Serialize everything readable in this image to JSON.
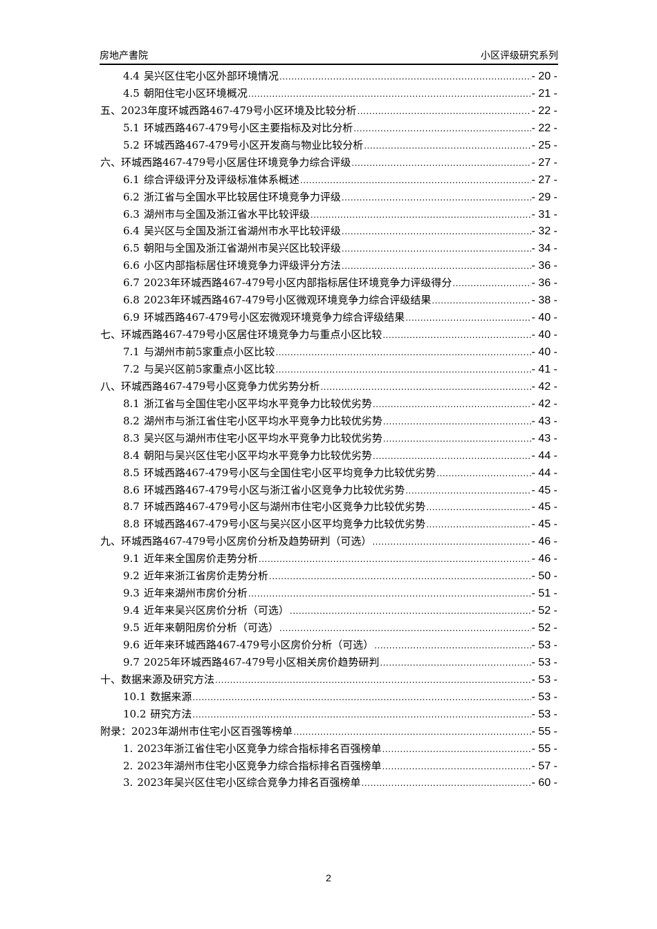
{
  "header": {
    "left": "房地产書院",
    "right": "小区评级研究系列"
  },
  "toc": [
    {
      "level": 2,
      "num": "4.4",
      "title": "吴兴区住宅小区外部环境情况",
      "page": "- 20 -"
    },
    {
      "level": 2,
      "num": "4.5",
      "title": "朝阳住宅小区环境概况",
      "page": "- 21 -"
    },
    {
      "level": 1,
      "num": "",
      "title": "五、2023年度环城西路467-479号小区环境及比较分析",
      "page": "- 22 -"
    },
    {
      "level": 2,
      "num": "5.1",
      "title": "环城西路467-479号小区主要指标及对比分析",
      "page": "- 22 -"
    },
    {
      "level": 2,
      "num": "5.2",
      "title": "环城西路467-479号小区开发商与物业比较分析",
      "page": "- 25 -"
    },
    {
      "level": 1,
      "num": "",
      "title": "六、环城西路467-479号小区居住环境竞争力综合评级",
      "page": "- 27 -"
    },
    {
      "level": 2,
      "num": "6.1",
      "title": "综合评级评分及评级标准体系概述",
      "page": "- 27 -"
    },
    {
      "level": 2,
      "num": "6.2",
      "title": "浙江省与全国水平比较居住环境竞争力评级",
      "page": "- 29 -"
    },
    {
      "level": 2,
      "num": "6.3",
      "title": "湖州市与全国及浙江省水平比较评级",
      "page": "- 31 -"
    },
    {
      "level": 2,
      "num": "6.4",
      "title": "吴兴区与全国及浙江省湖州市水平比较评级",
      "page": "- 32 -"
    },
    {
      "level": 2,
      "num": "6.5",
      "title": "朝阳与全国及浙江省湖州市吴兴区比较评级",
      "page": "- 34 -"
    },
    {
      "level": 2,
      "num": "6.6",
      "title": "小区内部指标居住环境竞争力评级评分方法",
      "page": "- 36 -"
    },
    {
      "level": 2,
      "num": "6.7",
      "title": "2023年环城西路467-479号小区内部指标居住环境竞争力评级得分",
      "page": "- 36 -"
    },
    {
      "level": 2,
      "num": "6.8",
      "title": "2023年环城西路467-479号小区微观环境竞争力综合评级结果",
      "page": "- 38 -"
    },
    {
      "level": 2,
      "num": "6.9",
      "title": "环城西路467-479号小区宏微观环境竞争力综合评级结果",
      "page": "- 40 -"
    },
    {
      "level": 1,
      "num": "",
      "title": "七、环城西路467-479号小区居住环境竞争力与重点小区比较",
      "page": "- 40 -"
    },
    {
      "level": 2,
      "num": "7.1",
      "title": "与湖州市前5家重点小区比较",
      "page": "- 40 -"
    },
    {
      "level": 2,
      "num": "7.2",
      "title": "与吴兴区前5家重点小区比较",
      "page": "- 41 -"
    },
    {
      "level": 1,
      "num": "",
      "title": "八、环城西路467-479号小区竞争力优劣势分析",
      "page": "- 42 -"
    },
    {
      "level": 2,
      "num": "8.1",
      "title": "浙江省与全国住宅小区平均水平竞争力比较优劣势",
      "page": "- 42 -"
    },
    {
      "level": 2,
      "num": "8.2",
      "title": "湖州市与浙江省住宅小区平均水平竞争力比较优劣势",
      "page": "- 43 -"
    },
    {
      "level": 2,
      "num": "8.3",
      "title": "吴兴区与湖州市住宅小区平均水平竞争力比较优劣势",
      "page": "- 43 -"
    },
    {
      "level": 2,
      "num": "8.4",
      "title": "朝阳与吴兴区住宅小区平均水平竞争力比较优劣势",
      "page": "- 44 -"
    },
    {
      "level": 2,
      "num": "8.5",
      "title": "环城西路467-479号小区与全国住宅小区平均竞争力比较优劣势",
      "page": "- 44 -"
    },
    {
      "level": 2,
      "num": "8.6",
      "title": "环城西路467-479号小区与浙江省小区竞争力比较优劣势",
      "page": "- 45 -"
    },
    {
      "level": 2,
      "num": "8.7",
      "title": "环城西路467-479号小区与湖州市住宅小区竞争力比较优劣势",
      "page": "- 45 -"
    },
    {
      "level": 2,
      "num": "8.8",
      "title": "环城西路467-479号小区与吴兴区小区平均竞争力比较优劣势",
      "page": "- 45 -"
    },
    {
      "level": 1,
      "num": "",
      "title": "九、环城西路467-479号小区房价分析及趋势研判（可选）",
      "page": "- 46 -"
    },
    {
      "level": 2,
      "num": "9.1",
      "title": "近年来全国房价走势分析",
      "page": "- 46 -"
    },
    {
      "level": 2,
      "num": "9.2",
      "title": "近年来浙江省房价走势分析",
      "page": "- 50 -"
    },
    {
      "level": 2,
      "num": "9.3",
      "title": "近年来湖州市房价分析",
      "page": "- 51 -"
    },
    {
      "level": 2,
      "num": "9.4",
      "title": "近年来吴兴区房价分析（可选）",
      "page": "- 52 -"
    },
    {
      "level": 2,
      "num": "9.5",
      "title": "近年来朝阳房价分析（可选）",
      "page": "- 52 -"
    },
    {
      "level": 2,
      "num": "9.6",
      "title": "近年来环城西路467-479号小区房价分析（可选）",
      "page": "- 53 -"
    },
    {
      "level": 2,
      "num": "9.7",
      "title": "2025年环城西路467-479号小区相关房价趋势研判",
      "page": "- 53 -"
    },
    {
      "level": 1,
      "num": "",
      "title": "十、数据来源及研究方法",
      "page": "- 53 -"
    },
    {
      "level": 2,
      "num": "10.1",
      "title": "数据来源",
      "page": "- 53 -"
    },
    {
      "level": 2,
      "num": "10.2",
      "title": "研究方法",
      "page": "- 53 -"
    },
    {
      "level": 1,
      "num": "",
      "title": "附录：2023年湖州市住宅小区百强等榜单",
      "page": "- 55 -"
    },
    {
      "level": 2,
      "num": "1.",
      "title": "2023年浙江省住宅小区竞争力综合指标排名百强榜单",
      "page": "- 55 -"
    },
    {
      "level": 2,
      "num": "2.",
      "title": "2023年湖州市住宅小区竞争力综合指标排名百强榜单",
      "page": "- 57 -"
    },
    {
      "level": 2,
      "num": "3.",
      "title": "2023年吴兴区住宅小区综合竞争力排名百强榜单",
      "page": "- 60 -"
    }
  ],
  "footer": {
    "page_number": "2"
  }
}
